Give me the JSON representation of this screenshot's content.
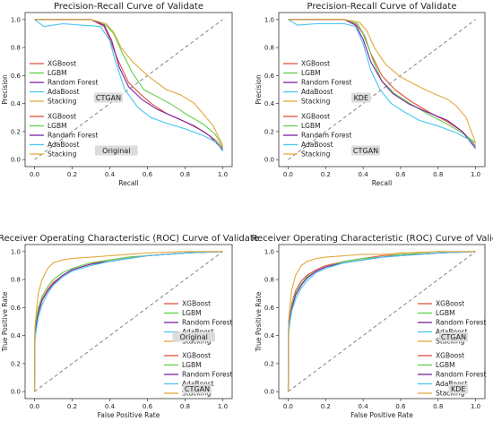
{
  "colors": {
    "XGBoost": "#e0533f",
    "LGBM": "#5fd24a",
    "Random Forest": "#7b1fa2",
    "AdaBoost": "#47c6ef",
    "Stacking": "#e3a93d",
    "diagonal": "#777777",
    "tag_bg": "#dcdcdc"
  },
  "chart_data": [
    {
      "type": "line",
      "title": "Precision-Recall Curve of Validate",
      "xlabel": "Recall",
      "ylabel": "Precision",
      "xlim": [
        -0.05,
        1.05
      ],
      "ylim": [
        -0.05,
        1.05
      ],
      "xticks": [
        "0.0",
        "0.2",
        "0.4",
        "0.6",
        "0.8",
        "1.0"
      ],
      "yticks": [
        "0.0",
        "0.2",
        "0.4",
        "0.6",
        "0.8",
        "1.0"
      ],
      "reference_line": {
        "from": [
          0,
          0
        ],
        "to": [
          1,
          1
        ],
        "style": "dashed"
      },
      "legends": [
        {
          "entries": [
            "XGBoost",
            "LGBM",
            "Random Forest",
            "AdaBoost",
            "Stacking"
          ],
          "tag": "CTGAN",
          "placement": "center-left"
        },
        {
          "entries": [
            "XGBoost",
            "LGBM",
            "Random Forest",
            "AdaBoost",
            "Stacking"
          ],
          "tag": "Original",
          "placement": "lower-left"
        }
      ],
      "series": [
        {
          "name": "XGBoost",
          "x": [
            0,
            0.15,
            0.3,
            0.37,
            0.4,
            0.44,
            0.5,
            0.56,
            0.62,
            0.7,
            0.8,
            0.9,
            0.96,
            1.0
          ],
          "y": [
            1,
            1,
            1,
            0.95,
            0.86,
            0.72,
            0.55,
            0.47,
            0.4,
            0.33,
            0.27,
            0.2,
            0.14,
            0.08
          ]
        },
        {
          "name": "LGBM",
          "x": [
            0,
            0.15,
            0.3,
            0.38,
            0.42,
            0.46,
            0.52,
            0.58,
            0.65,
            0.72,
            0.8,
            0.9,
            0.96,
            1.0
          ],
          "y": [
            1,
            1,
            1,
            0.96,
            0.9,
            0.78,
            0.62,
            0.5,
            0.45,
            0.4,
            0.33,
            0.25,
            0.18,
            0.09
          ]
        },
        {
          "name": "Random Forest",
          "x": [
            0,
            0.15,
            0.3,
            0.37,
            0.41,
            0.45,
            0.5,
            0.57,
            0.65,
            0.75,
            0.85,
            0.93,
            1.0
          ],
          "y": [
            1,
            1,
            1,
            0.96,
            0.85,
            0.66,
            0.52,
            0.43,
            0.36,
            0.3,
            0.24,
            0.17,
            0.07
          ]
        },
        {
          "name": "AdaBoost",
          "x": [
            0,
            0.05,
            0.15,
            0.25,
            0.35,
            0.4,
            0.43,
            0.48,
            0.55,
            0.62,
            0.7,
            0.8,
            0.9,
            0.97,
            1.0
          ],
          "y": [
            1,
            0.95,
            0.97,
            0.96,
            0.95,
            0.85,
            0.7,
            0.5,
            0.37,
            0.3,
            0.26,
            0.22,
            0.17,
            0.12,
            0.06
          ]
        },
        {
          "name": "Stacking",
          "x": [
            0,
            0.15,
            0.3,
            0.38,
            0.42,
            0.46,
            0.52,
            0.6,
            0.7,
            0.78,
            0.85,
            0.9,
            0.95,
            1.0
          ],
          "y": [
            1,
            1,
            1,
            0.97,
            0.91,
            0.8,
            0.7,
            0.6,
            0.5,
            0.46,
            0.4,
            0.32,
            0.24,
            0.1
          ]
        }
      ]
    },
    {
      "type": "line",
      "title": "Precision-Recall Curve of Validate",
      "xlabel": "Recall",
      "ylabel": "Precision",
      "xlim": [
        -0.05,
        1.05
      ],
      "ylim": [
        -0.05,
        1.05
      ],
      "xticks": [
        "0.0",
        "0.2",
        "0.4",
        "0.6",
        "0.8",
        "1.0"
      ],
      "yticks": [
        "0.0",
        "0.2",
        "0.4",
        "0.6",
        "0.8",
        "1.0"
      ],
      "reference_line": {
        "from": [
          0,
          0
        ],
        "to": [
          1,
          1
        ],
        "style": "dashed"
      },
      "legends": [
        {
          "entries": [
            "XGBoost",
            "LGBM",
            "Random Forest",
            "AdaBoost",
            "Stacking"
          ],
          "tag": "KDE",
          "placement": "center-left"
        },
        {
          "entries": [
            "XGBoost",
            "LGBM",
            "Random Forest",
            "AdaBoost",
            "Stacking"
          ],
          "tag": "CTGAN",
          "placement": "lower-left"
        }
      ],
      "series": [
        {
          "name": "XGBoost",
          "x": [
            0,
            0.15,
            0.3,
            0.36,
            0.4,
            0.44,
            0.5,
            0.57,
            0.65,
            0.75,
            0.85,
            0.93,
            1.0
          ],
          "y": [
            1,
            1,
            1,
            0.97,
            0.9,
            0.76,
            0.6,
            0.5,
            0.42,
            0.34,
            0.27,
            0.2,
            0.1
          ]
        },
        {
          "name": "LGBM",
          "x": [
            0,
            0.15,
            0.3,
            0.37,
            0.41,
            0.45,
            0.5,
            0.57,
            0.65,
            0.74,
            0.84,
            0.93,
            1.0
          ],
          "y": [
            1,
            1,
            1,
            0.97,
            0.88,
            0.72,
            0.56,
            0.47,
            0.4,
            0.33,
            0.26,
            0.19,
            0.12
          ]
        },
        {
          "name": "Random Forest",
          "x": [
            0,
            0.15,
            0.3,
            0.36,
            0.4,
            0.44,
            0.5,
            0.56,
            0.64,
            0.74,
            0.85,
            0.93,
            1.0
          ],
          "y": [
            1,
            1,
            1,
            0.96,
            0.86,
            0.7,
            0.56,
            0.47,
            0.4,
            0.34,
            0.28,
            0.2,
            0.08
          ]
        },
        {
          "name": "AdaBoost",
          "x": [
            0,
            0.05,
            0.15,
            0.3,
            0.36,
            0.4,
            0.44,
            0.49,
            0.55,
            0.62,
            0.7,
            0.8,
            0.9,
            0.97,
            1.0
          ],
          "y": [
            1,
            0.96,
            0.97,
            0.97,
            0.95,
            0.83,
            0.64,
            0.5,
            0.4,
            0.34,
            0.28,
            0.24,
            0.19,
            0.14,
            0.09
          ]
        },
        {
          "name": "Stacking",
          "x": [
            0,
            0.15,
            0.3,
            0.38,
            0.42,
            0.46,
            0.52,
            0.6,
            0.7,
            0.78,
            0.85,
            0.9,
            0.95,
            1.0
          ],
          "y": [
            1,
            1,
            1,
            0.98,
            0.92,
            0.8,
            0.68,
            0.59,
            0.52,
            0.47,
            0.43,
            0.38,
            0.3,
            0.12
          ]
        }
      ]
    },
    {
      "type": "line",
      "title": "Receiver Operating Characteristic (ROC) Curve of Validate",
      "xlabel": "False Positive Rate",
      "ylabel": "True Positive Rate",
      "xlim": [
        -0.05,
        1.05
      ],
      "ylim": [
        -0.05,
        1.05
      ],
      "xticks": [
        "0.0",
        "0.2",
        "0.4",
        "0.6",
        "0.8",
        "1.0"
      ],
      "yticks": [
        "0.0",
        "0.2",
        "0.4",
        "0.6",
        "0.8",
        "1.0"
      ],
      "reference_line": {
        "from": [
          0,
          0
        ],
        "to": [
          1,
          1
        ],
        "style": "dashed"
      },
      "legends": [
        {
          "entries": [
            "XGBoost",
            "LGBM",
            "Random Forest",
            "AdaBoost",
            "Stacking"
          ],
          "tag": "Original",
          "placement": "center-right"
        },
        {
          "entries": [
            "XGBoost",
            "LGBM",
            "Random Forest",
            "AdaBoost",
            "Stacking"
          ],
          "tag": "CTGAN",
          "placement": "lower-right"
        }
      ],
      "series": [
        {
          "name": "XGBoost",
          "x": [
            0,
            0.002,
            0.01,
            0.02,
            0.04,
            0.07,
            0.1,
            0.15,
            0.2,
            0.3,
            0.4,
            0.5,
            0.6,
            0.8,
            1.0
          ],
          "y": [
            0,
            0.4,
            0.5,
            0.58,
            0.66,
            0.73,
            0.78,
            0.83,
            0.87,
            0.91,
            0.94,
            0.96,
            0.97,
            0.99,
            1.0
          ]
        },
        {
          "name": "LGBM",
          "x": [
            0,
            0.002,
            0.01,
            0.02,
            0.04,
            0.07,
            0.1,
            0.15,
            0.2,
            0.3,
            0.4,
            0.5,
            0.6,
            0.8,
            1.0
          ],
          "y": [
            0,
            0.42,
            0.52,
            0.6,
            0.68,
            0.75,
            0.8,
            0.85,
            0.88,
            0.92,
            0.94,
            0.96,
            0.97,
            0.99,
            1.0
          ]
        },
        {
          "name": "Random Forest",
          "x": [
            0,
            0.002,
            0.01,
            0.02,
            0.04,
            0.07,
            0.1,
            0.15,
            0.2,
            0.3,
            0.4,
            0.5,
            0.6,
            0.8,
            1.0
          ],
          "y": [
            0,
            0.38,
            0.48,
            0.56,
            0.65,
            0.72,
            0.77,
            0.83,
            0.87,
            0.91,
            0.93,
            0.95,
            0.97,
            0.99,
            1.0
          ]
        },
        {
          "name": "AdaBoost",
          "x": [
            0,
            0.002,
            0.01,
            0.02,
            0.04,
            0.07,
            0.1,
            0.15,
            0.2,
            0.3,
            0.4,
            0.5,
            0.6,
            0.8,
            1.0
          ],
          "y": [
            0,
            0.36,
            0.45,
            0.53,
            0.62,
            0.7,
            0.76,
            0.82,
            0.86,
            0.9,
            0.93,
            0.95,
            0.97,
            0.99,
            1.0
          ]
        },
        {
          "name": "Stacking",
          "x": [
            0,
            0.002,
            0.01,
            0.02,
            0.04,
            0.07,
            0.1,
            0.15,
            0.2,
            0.3,
            0.4,
            0.5,
            0.6,
            0.8,
            1.0
          ],
          "y": [
            0,
            0.45,
            0.58,
            0.7,
            0.8,
            0.88,
            0.92,
            0.94,
            0.95,
            0.96,
            0.97,
            0.98,
            0.99,
            1.0,
            1.0
          ]
        }
      ]
    },
    {
      "type": "line",
      "title": "Receiver Operating Characteristic (ROC) Curve of Validate",
      "xlabel": "False Positive Rate",
      "ylabel": "True Positive Rate",
      "xlim": [
        -0.05,
        1.05
      ],
      "ylim": [
        -0.05,
        1.05
      ],
      "xticks": [
        "0.0",
        "0.2",
        "0.4",
        "0.6",
        "0.8",
        "1.0"
      ],
      "yticks": [
        "0.0",
        "0.2",
        "0.4",
        "0.6",
        "0.8",
        "1.0"
      ],
      "reference_line": {
        "from": [
          0,
          0
        ],
        "to": [
          1,
          1
        ],
        "style": "dashed"
      },
      "legends": [
        {
          "entries": [
            "XGBoost",
            "LGBM",
            "Random Forest",
            "AdaBoost",
            "Stacking"
          ],
          "tag": "CTGAN",
          "placement": "center-right"
        },
        {
          "entries": [
            "XGBoost",
            "LGBM",
            "Random Forest",
            "AdaBoost",
            "Stacking"
          ],
          "tag": "KDE",
          "placement": "lower-right"
        }
      ],
      "series": [
        {
          "name": "XGBoost",
          "x": [
            0,
            0.002,
            0.01,
            0.02,
            0.04,
            0.07,
            0.1,
            0.15,
            0.2,
            0.3,
            0.4,
            0.5,
            0.6,
            0.8,
            1.0
          ],
          "y": [
            0,
            0.44,
            0.55,
            0.63,
            0.72,
            0.79,
            0.83,
            0.87,
            0.9,
            0.93,
            0.95,
            0.97,
            0.98,
            0.99,
            1.0
          ]
        },
        {
          "name": "LGBM",
          "x": [
            0,
            0.002,
            0.01,
            0.02,
            0.04,
            0.07,
            0.1,
            0.15,
            0.2,
            0.3,
            0.4,
            0.5,
            0.6,
            0.8,
            1.0
          ],
          "y": [
            0,
            0.42,
            0.53,
            0.62,
            0.7,
            0.77,
            0.82,
            0.86,
            0.89,
            0.93,
            0.95,
            0.96,
            0.98,
            0.99,
            1.0
          ]
        },
        {
          "name": "Random Forest",
          "x": [
            0,
            0.002,
            0.01,
            0.02,
            0.04,
            0.07,
            0.1,
            0.15,
            0.2,
            0.3,
            0.4,
            0.5,
            0.6,
            0.8,
            1.0
          ],
          "y": [
            0,
            0.42,
            0.52,
            0.6,
            0.69,
            0.76,
            0.81,
            0.86,
            0.89,
            0.92,
            0.94,
            0.96,
            0.97,
            0.99,
            1.0
          ]
        },
        {
          "name": "AdaBoost",
          "x": [
            0,
            0.002,
            0.01,
            0.02,
            0.04,
            0.07,
            0.1,
            0.15,
            0.2,
            0.3,
            0.4,
            0.5,
            0.6,
            0.8,
            1.0
          ],
          "y": [
            0,
            0.4,
            0.5,
            0.58,
            0.66,
            0.74,
            0.79,
            0.85,
            0.88,
            0.92,
            0.94,
            0.96,
            0.97,
            0.99,
            1.0
          ]
        },
        {
          "name": "Stacking",
          "x": [
            0,
            0.002,
            0.01,
            0.02,
            0.04,
            0.07,
            0.1,
            0.15,
            0.2,
            0.3,
            0.4,
            0.5,
            0.6,
            0.8,
            1.0
          ],
          "y": [
            0,
            0.5,
            0.62,
            0.73,
            0.83,
            0.9,
            0.93,
            0.95,
            0.96,
            0.97,
            0.98,
            0.98,
            0.99,
            1.0,
            1.0
          ]
        }
      ]
    }
  ]
}
